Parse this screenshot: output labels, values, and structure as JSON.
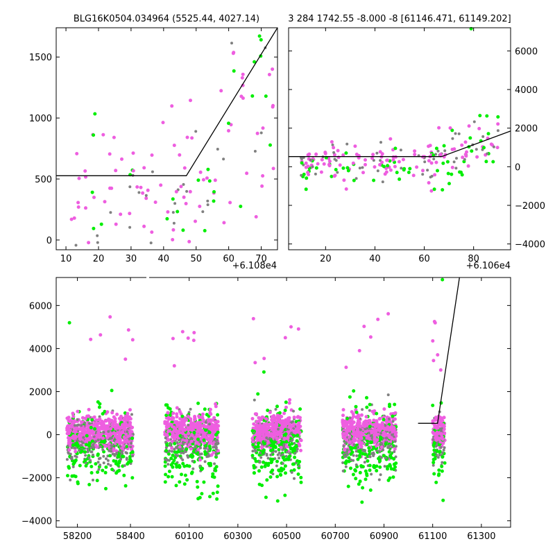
{
  "chart_data": [
    {
      "type": "scatter",
      "title": "BLG16K0504.034964 (5525.44, 4027.14)",
      "x_offset_label": "+6.108e4",
      "xlim": [
        7,
        75
      ],
      "ylim": [
        -80,
        1740
      ],
      "xticks": [
        "10",
        "20",
        "30",
        "40",
        "50",
        "60",
        "70"
      ],
      "xtick_values": [
        10,
        20,
        30,
        40,
        50,
        60,
        70
      ],
      "yticks": [
        "0",
        "500",
        "1000",
        "1500"
      ],
      "ytick_values": [
        0,
        500,
        1000,
        1500
      ],
      "model_line": [
        [
          7,
          527
        ],
        [
          47,
          527
        ],
        [
          75,
          1740
        ]
      ],
      "seed": 11,
      "colors": {
        "magenta": "#ee5ee0",
        "gray": "#808080",
        "green": "#00ee00",
        "line": "#000000"
      }
    },
    {
      "type": "scatter",
      "title": "3 284 1742.55 -8.000 -8 [61146.471, 61149.202]",
      "x_offset_label": "+6.106e4",
      "xlim": [
        5,
        95
      ],
      "ylim": [
        -4300,
        7200
      ],
      "xticks": [
        "20",
        "40",
        "60",
        "80"
      ],
      "xtick_values": [
        20,
        40,
        60,
        80
      ],
      "yticks": [
        "−4000",
        "−2000",
        "0",
        "2000",
        "4000",
        "6000"
      ],
      "ytick_values": [
        -4000,
        -2000,
        0,
        2000,
        4000,
        6000
      ],
      "model_line": [
        [
          5,
          527
        ],
        [
          67,
          527
        ],
        [
          95,
          1850
        ]
      ],
      "seed": 23,
      "colors": {
        "magenta": "#ee5ee0",
        "gray": "#808080",
        "green": "#00ee00",
        "line": "#000000"
      }
    },
    {
      "type": "scatter",
      "title": "",
      "xlim": [
        58120,
        61420
      ],
      "ylim": [
        -4300,
        7300
      ],
      "xticks": [
        "58200",
        "58400",
        "60100",
        "60300",
        "60500",
        "60700",
        "60900",
        "61100",
        "61300"
      ],
      "yticks": [
        "−4000",
        "−2000",
        "0",
        "2000",
        "4000",
        "6000"
      ],
      "ytick_values": [
        -4000,
        -2000,
        0,
        2000,
        4000,
        6000
      ],
      "seasons": [
        [
          58160,
          58410
        ],
        [
          60000,
          60220
        ],
        [
          60360,
          60560
        ],
        [
          60730,
          60950
        ],
        [
          61100,
          61150
        ]
      ],
      "model_line": [
        [
          61040,
          527
        ],
        [
          61120,
          527
        ],
        [
          61210,
          7300
        ]
      ],
      "seed": 37,
      "colors": {
        "magenta": "#ee5ee0",
        "gray": "#808080",
        "green": "#00ee00",
        "line": "#000000"
      }
    }
  ]
}
